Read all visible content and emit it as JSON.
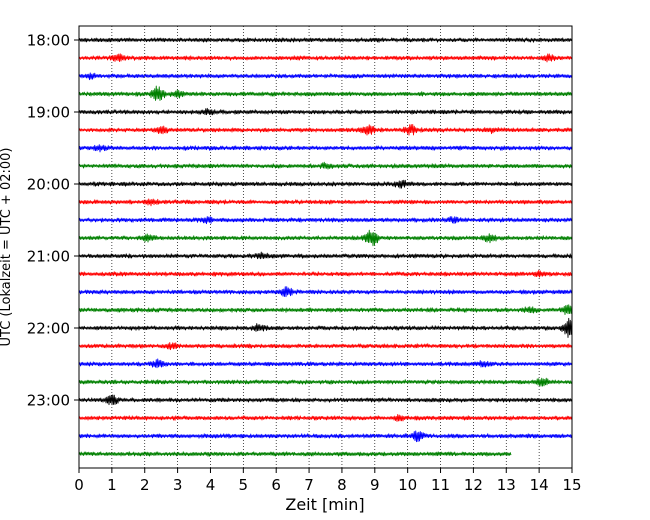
{
  "chart_data": {
    "type": "line",
    "title": "",
    "xlabel": "Zeit  [min]",
    "ylabel": "UTC (Lokalzeit = UTC + 02:00)",
    "xlim": [
      0,
      15
    ],
    "x_ticks": [
      0,
      1,
      2,
      3,
      4,
      5,
      6,
      7,
      8,
      9,
      10,
      11,
      12,
      13,
      14,
      15
    ],
    "x_tick_labels": [
      "0",
      "1",
      "2",
      "3",
      "4",
      "5",
      "6",
      "7",
      "8",
      "9",
      "10",
      "11",
      "12",
      "13",
      "14",
      "15"
    ],
    "grid": "vertical dotted lines at each minute",
    "legend": "none",
    "trace_colors": [
      "#000000",
      "#ff0000",
      "#0000ff",
      "#008000"
    ],
    "y_tick_labels": [
      {
        "label": "18:00",
        "row": 0
      },
      {
        "label": "19:00",
        "row": 4
      },
      {
        "label": "20:00",
        "row": 8
      },
      {
        "label": "21:00",
        "row": 12
      },
      {
        "label": "22:00",
        "row": 16
      },
      {
        "label": "23:00",
        "row": 20
      }
    ],
    "traces": [
      {
        "start": "18:00",
        "end_min": 15,
        "color": "#000000",
        "bursts": []
      },
      {
        "start": "18:15",
        "end_min": 15,
        "color": "#ff0000",
        "bursts": [
          {
            "x": 1.2,
            "amp": 3
          },
          {
            "x": 14.3,
            "amp": 2.5
          }
        ]
      },
      {
        "start": "18:30",
        "end_min": 15,
        "color": "#0000ff",
        "bursts": [
          {
            "x": 0.4,
            "amp": 2
          }
        ]
      },
      {
        "start": "18:45",
        "end_min": 15,
        "color": "#008000",
        "bursts": [
          {
            "x": 2.4,
            "amp": 7
          },
          {
            "x": 3.0,
            "amp": 3
          }
        ]
      },
      {
        "start": "19:00",
        "end_min": 15,
        "color": "#000000",
        "bursts": [
          {
            "x": 3.9,
            "amp": 2
          }
        ]
      },
      {
        "start": "19:15",
        "end_min": 15,
        "color": "#ff0000",
        "bursts": [
          {
            "x": 2.5,
            "amp": 3
          },
          {
            "x": 8.8,
            "amp": 4
          },
          {
            "x": 10.1,
            "amp": 4
          },
          {
            "x": 12.5,
            "amp": 2
          }
        ]
      },
      {
        "start": "19:30",
        "end_min": 15,
        "color": "#0000ff",
        "bursts": [
          {
            "x": 0.6,
            "amp": 2
          }
        ]
      },
      {
        "start": "19:45",
        "end_min": 15,
        "color": "#008000",
        "bursts": [
          {
            "x": 7.5,
            "amp": 2
          }
        ]
      },
      {
        "start": "20:00",
        "end_min": 15,
        "color": "#000000",
        "bursts": [
          {
            "x": 9.8,
            "amp": 3
          }
        ]
      },
      {
        "start": "20:15",
        "end_min": 15,
        "color": "#ff0000",
        "bursts": [
          {
            "x": 2.2,
            "amp": 2
          }
        ]
      },
      {
        "start": "20:30",
        "end_min": 15,
        "color": "#0000ff",
        "bursts": [
          {
            "x": 3.9,
            "amp": 2
          },
          {
            "x": 11.4,
            "amp": 2
          }
        ]
      },
      {
        "start": "20:45",
        "end_min": 15,
        "color": "#008000",
        "bursts": [
          {
            "x": 2.1,
            "amp": 3
          },
          {
            "x": 8.9,
            "amp": 8
          },
          {
            "x": 12.5,
            "amp": 3
          }
        ]
      },
      {
        "start": "21:00",
        "end_min": 15,
        "color": "#000000",
        "bursts": [
          {
            "x": 5.6,
            "amp": 2
          }
        ]
      },
      {
        "start": "21:15",
        "end_min": 15,
        "color": "#ff0000",
        "bursts": [
          {
            "x": 14.0,
            "amp": 2
          }
        ]
      },
      {
        "start": "21:30",
        "end_min": 15,
        "color": "#0000ff",
        "bursts": [
          {
            "x": 6.3,
            "amp": 4
          }
        ]
      },
      {
        "start": "21:45",
        "end_min": 15,
        "color": "#008000",
        "bursts": [
          {
            "x": 13.7,
            "amp": 2
          },
          {
            "x": 14.9,
            "amp": 4
          }
        ]
      },
      {
        "start": "22:00",
        "end_min": 15,
        "color": "#000000",
        "bursts": [
          {
            "x": 5.5,
            "amp": 3
          },
          {
            "x": 14.9,
            "amp": 9
          }
        ]
      },
      {
        "start": "22:15",
        "end_min": 15,
        "color": "#ff0000",
        "bursts": [
          {
            "x": 2.8,
            "amp": 2
          }
        ]
      },
      {
        "start": "22:30",
        "end_min": 15,
        "color": "#0000ff",
        "bursts": [
          {
            "x": 2.4,
            "amp": 3
          },
          {
            "x": 12.3,
            "amp": 2
          }
        ]
      },
      {
        "start": "22:45",
        "end_min": 15,
        "color": "#008000",
        "bursts": [
          {
            "x": 14.1,
            "amp": 4
          }
        ]
      },
      {
        "start": "23:00",
        "end_min": 15,
        "color": "#000000",
        "bursts": [
          {
            "x": 1.0,
            "amp": 4
          }
        ]
      },
      {
        "start": "23:15",
        "end_min": 15,
        "color": "#ff0000",
        "bursts": [
          {
            "x": 9.8,
            "amp": 2
          }
        ]
      },
      {
        "start": "23:30",
        "end_min": 15,
        "color": "#0000ff",
        "bursts": [
          {
            "x": 10.3,
            "amp": 5
          }
        ]
      },
      {
        "start": "23:45",
        "end_min": 13.15,
        "color": "#008000",
        "bursts": []
      }
    ]
  }
}
